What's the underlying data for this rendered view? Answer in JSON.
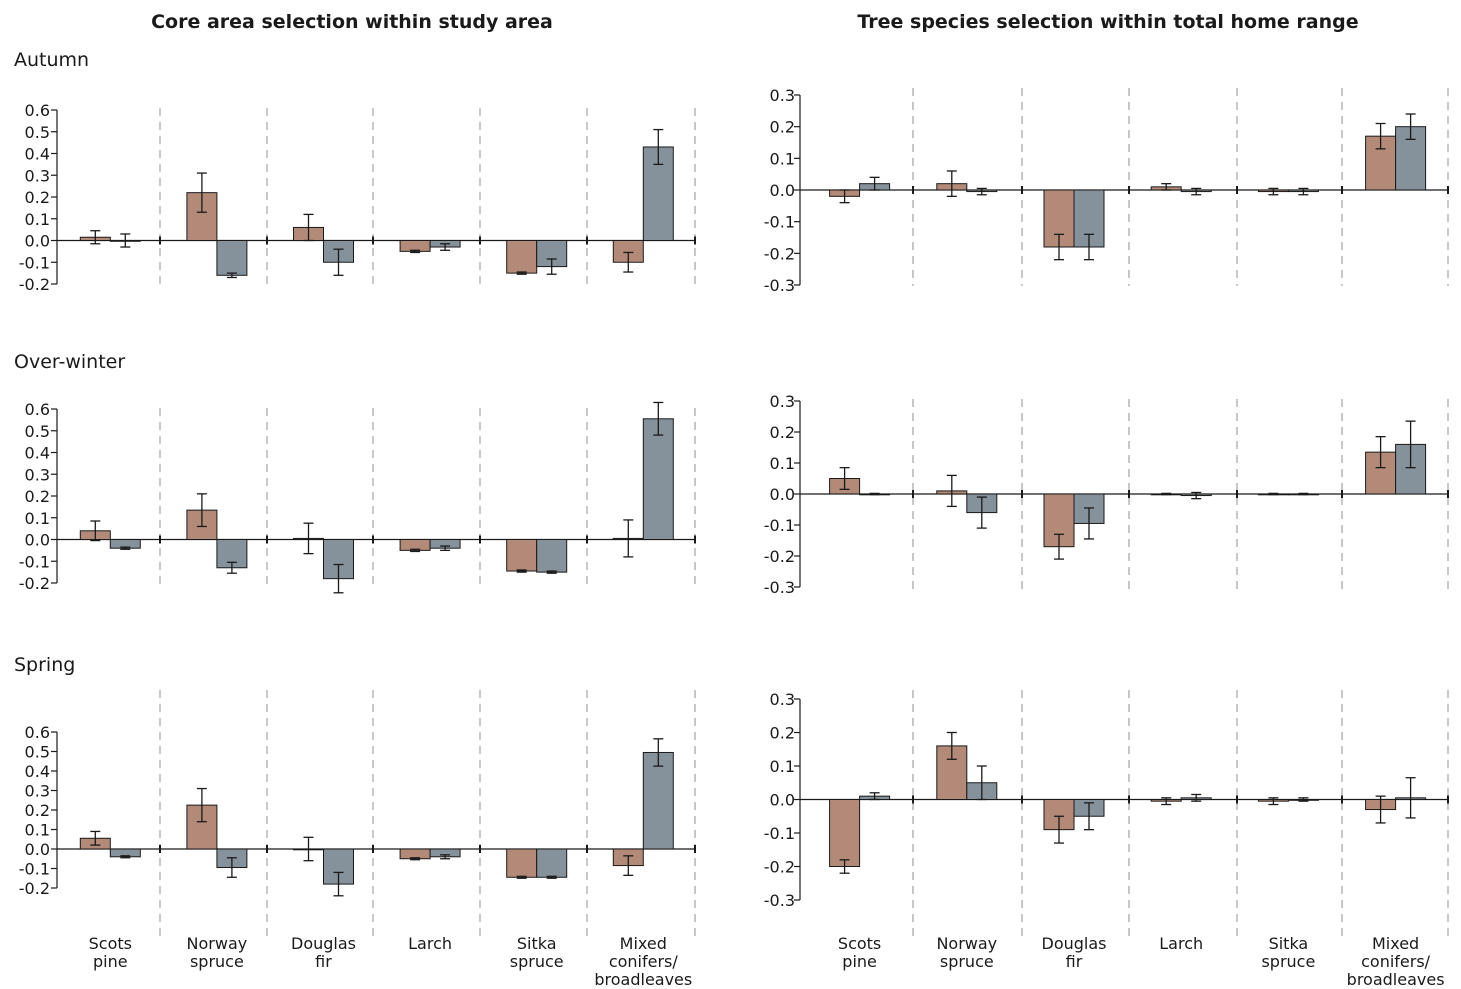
{
  "figure": {
    "left_title": "Core area selection within study area",
    "right_title": "Tree species selection within total home range",
    "seasons": [
      "Autumn",
      "Over-winter",
      "Spring"
    ],
    "category_labels": [
      [
        "Scots",
        "pine"
      ],
      [
        "Norway",
        "spruce"
      ],
      [
        "Douglas",
        "fir"
      ],
      [
        "Larch"
      ],
      [
        "Sitka",
        "spruce"
      ],
      [
        "Mixed",
        "conifers/",
        "broadleaves"
      ]
    ]
  },
  "colors": {
    "series_a": "#b38a78",
    "series_b": "#85919b",
    "divider": "#c8c8c8",
    "axis": "#1a1a1a"
  },
  "chart_data": [
    {
      "type": "bar",
      "panel": "left",
      "season": "Autumn",
      "categories": [
        "Scots pine",
        "Norway spruce",
        "Douglas fir",
        "Larch",
        "Sitka spruce",
        "Mixed conifers/broadleaves"
      ],
      "ylim": [
        -0.2,
        0.6
      ],
      "yticks": [
        "0.6",
        "0.5",
        "0.4",
        "0.3",
        "0.2",
        "0.1",
        "0.0",
        "-0.1",
        "-0.2"
      ],
      "series": [
        {
          "values": [
            0.015,
            0.22,
            0.06,
            -0.05,
            -0.15,
            -0.1
          ],
          "errors": [
            0.03,
            0.09,
            0.06,
            0.005,
            0.005,
            0.045
          ]
        },
        {
          "values": [
            0.0,
            -0.16,
            -0.1,
            -0.03,
            -0.12,
            0.43
          ],
          "errors": [
            0.03,
            0.01,
            0.06,
            0.015,
            0.035,
            0.08
          ]
        }
      ]
    },
    {
      "type": "bar",
      "panel": "left",
      "season": "Over-winter",
      "categories": [
        "Scots pine",
        "Norway spruce",
        "Douglas fir",
        "Larch",
        "Sitka spruce",
        "Mixed conifers/broadleaves"
      ],
      "ylim": [
        -0.2,
        0.6
      ],
      "yticks": [
        "0.6",
        "0.5",
        "0.4",
        "0.3",
        "0.2",
        "0.1",
        "0.0",
        "-0.1",
        "-0.2"
      ],
      "series": [
        {
          "values": [
            0.04,
            0.135,
            0.005,
            -0.05,
            -0.145,
            0.005
          ],
          "errors": [
            0.045,
            0.075,
            0.07,
            0.005,
            0.005,
            0.085
          ]
        },
        {
          "values": [
            -0.04,
            -0.13,
            -0.18,
            -0.04,
            -0.15,
            0.555
          ],
          "errors": [
            0.005,
            0.025,
            0.065,
            0.01,
            0.005,
            0.075
          ]
        }
      ]
    },
    {
      "type": "bar",
      "panel": "left",
      "season": "Spring",
      "categories": [
        "Scots pine",
        "Norway spruce",
        "Douglas fir",
        "Larch",
        "Sitka spruce",
        "Mixed conifers/broadleaves"
      ],
      "ylim": [
        -0.2,
        0.6
      ],
      "yticks": [
        "0.6",
        "0.5",
        "0.4",
        "0.3",
        "0.2",
        "0.1",
        "0.0",
        "-0.1",
        "-0.2"
      ],
      "series": [
        {
          "values": [
            0.055,
            0.225,
            0.0,
            -0.05,
            -0.145,
            -0.085
          ],
          "errors": [
            0.035,
            0.085,
            0.06,
            0.005,
            0.005,
            0.05
          ]
        },
        {
          "values": [
            -0.04,
            -0.095,
            -0.18,
            -0.04,
            -0.145,
            0.495
          ],
          "errors": [
            0.005,
            0.05,
            0.06,
            0.01,
            0.005,
            0.07
          ]
        }
      ]
    },
    {
      "type": "bar",
      "panel": "right",
      "season": "Autumn",
      "categories": [
        "Scots pine",
        "Norway spruce",
        "Douglas fir",
        "Larch",
        "Sitka spruce",
        "Mixed conifers/broadleaves"
      ],
      "ylim": [
        -0.3,
        0.3
      ],
      "yticks": [
        "0.3",
        "0.2",
        "0.1",
        "0.0",
        "-0.1",
        "-0.2",
        "-0.3"
      ],
      "series": [
        {
          "values": [
            -0.02,
            0.02,
            -0.18,
            0.01,
            -0.005,
            0.17
          ],
          "errors": [
            0.02,
            0.04,
            0.04,
            0.01,
            0.01,
            0.04
          ]
        },
        {
          "values": [
            0.02,
            -0.005,
            -0.18,
            -0.005,
            -0.005,
            0.2
          ],
          "errors": [
            0.02,
            0.01,
            0.04,
            0.01,
            0.01,
            0.04
          ]
        }
      ]
    },
    {
      "type": "bar",
      "panel": "right",
      "season": "Over-winter",
      "categories": [
        "Scots pine",
        "Norway spruce",
        "Douglas fir",
        "Larch",
        "Sitka spruce",
        "Mixed conifers/broadleaves"
      ],
      "ylim": [
        -0.3,
        0.3
      ],
      "yticks": [
        "0.3",
        "0.2",
        "0.1",
        "0.0",
        "-0.1",
        "-0.2",
        "-0.3"
      ],
      "series": [
        {
          "values": [
            0.05,
            0.01,
            -0.17,
            0.0,
            0.0,
            0.135
          ],
          "errors": [
            0.035,
            0.05,
            0.04,
            0.002,
            0.002,
            0.05
          ]
        },
        {
          "values": [
            0.0,
            -0.06,
            -0.095,
            -0.005,
            0.0,
            0.16
          ],
          "errors": [
            0.002,
            0.05,
            0.05,
            0.01,
            0.002,
            0.075
          ]
        }
      ]
    },
    {
      "type": "bar",
      "panel": "right",
      "season": "Spring",
      "categories": [
        "Scots pine",
        "Norway spruce",
        "Douglas fir",
        "Larch",
        "Sitka spruce",
        "Mixed conifers/broadleaves"
      ],
      "ylim": [
        -0.3,
        0.3
      ],
      "yticks": [
        "0.3",
        "0.2",
        "0.1",
        "0.0",
        "-0.1",
        "-0.2",
        "-0.3"
      ],
      "series": [
        {
          "values": [
            -0.2,
            0.16,
            -0.09,
            -0.005,
            -0.005,
            -0.03
          ],
          "errors": [
            0.02,
            0.04,
            0.04,
            0.01,
            0.01,
            0.04
          ]
        },
        {
          "values": [
            0.01,
            0.05,
            -0.05,
            0.005,
            0.0,
            0.005
          ],
          "errors": [
            0.01,
            0.05,
            0.04,
            0.01,
            0.005,
            0.06
          ]
        }
      ]
    }
  ]
}
